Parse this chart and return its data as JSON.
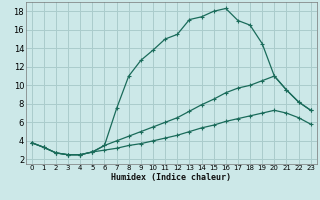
{
  "xlabel": "Humidex (Indice chaleur)",
  "xlim": [
    -0.5,
    23.5
  ],
  "ylim": [
    1.5,
    19.0
  ],
  "xticks": [
    0,
    1,
    2,
    3,
    4,
    5,
    6,
    7,
    8,
    9,
    10,
    11,
    12,
    13,
    14,
    15,
    16,
    17,
    18,
    19,
    20,
    21,
    22,
    23
  ],
  "yticks": [
    2,
    4,
    6,
    8,
    10,
    12,
    14,
    16,
    18
  ],
  "bg_color": "#cce8e8",
  "grid_color": "#aacccc",
  "line_color": "#1a6b5a",
  "line1_x": [
    0,
    1,
    2,
    3,
    4,
    5,
    6,
    7,
    8,
    9,
    10,
    11,
    12,
    13,
    14,
    15,
    16,
    17,
    18,
    19,
    20,
    21,
    22,
    23
  ],
  "line1_y": [
    3.8,
    3.3,
    2.7,
    2.5,
    2.5,
    2.8,
    3.5,
    7.5,
    11.0,
    12.7,
    13.8,
    15.0,
    15.5,
    17.1,
    17.4,
    18.0,
    18.3,
    17.0,
    16.5,
    14.5,
    11.0,
    9.5,
    8.2,
    7.3
  ],
  "line2_x": [
    0,
    1,
    2,
    3,
    4,
    5,
    6,
    7,
    8,
    9,
    10,
    11,
    12,
    13,
    14,
    15,
    16,
    17,
    18,
    19,
    20,
    21,
    22,
    23
  ],
  "line2_y": [
    3.8,
    3.3,
    2.7,
    2.5,
    2.5,
    2.8,
    3.5,
    4.0,
    4.5,
    5.0,
    5.5,
    6.0,
    6.5,
    7.2,
    7.9,
    8.5,
    9.2,
    9.7,
    10.0,
    10.5,
    11.0,
    9.5,
    8.2,
    7.3
  ],
  "line3_x": [
    0,
    1,
    2,
    3,
    4,
    5,
    6,
    7,
    8,
    9,
    10,
    11,
    12,
    13,
    14,
    15,
    16,
    17,
    18,
    19,
    20,
    21,
    22,
    23
  ],
  "line3_y": [
    3.8,
    3.3,
    2.7,
    2.5,
    2.5,
    2.8,
    3.0,
    3.2,
    3.5,
    3.7,
    4.0,
    4.3,
    4.6,
    5.0,
    5.4,
    5.7,
    6.1,
    6.4,
    6.7,
    7.0,
    7.3,
    7.0,
    6.5,
    5.8
  ]
}
